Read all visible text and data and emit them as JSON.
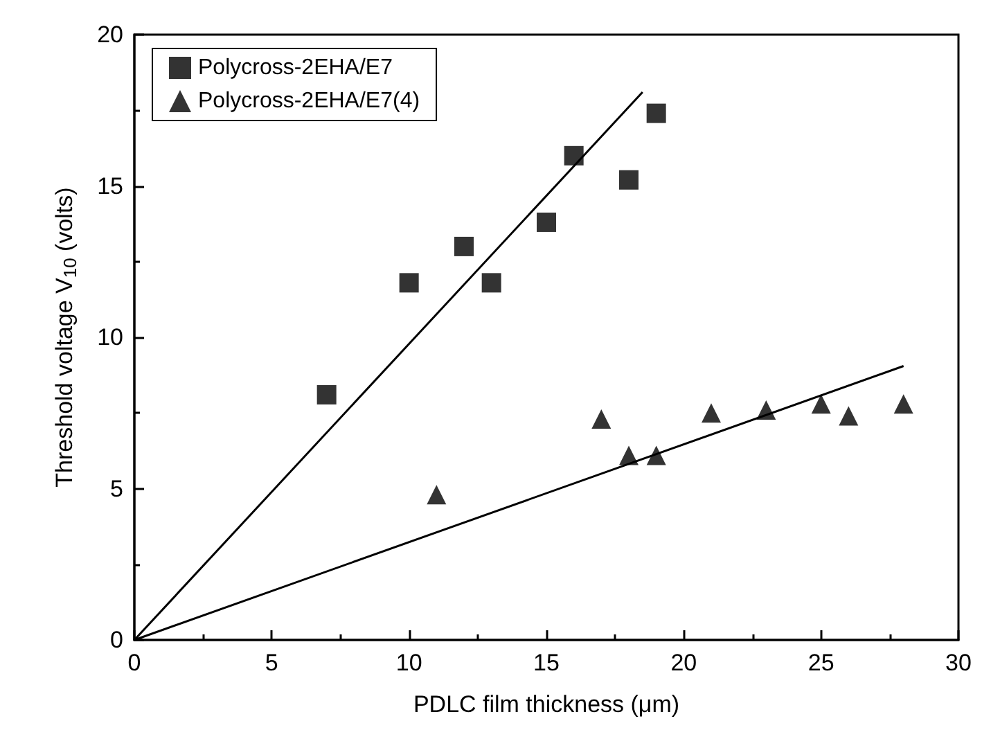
{
  "chart_data": {
    "type": "scatter",
    "xlabel": "PDLC film thickness (μm)",
    "ylabel": "Threshold voltage V$_{10}$ (volts)",
    "xlim": [
      0,
      30
    ],
    "xticks": [
      0,
      5,
      10,
      15,
      20,
      25,
      30
    ],
    "ylim": [
      0,
      20
    ],
    "yticks": [
      0,
      5,
      10,
      15,
      20
    ],
    "grid": false,
    "legend": "top left",
    "series": [
      {
        "name": "Polycross-2EHA/E7",
        "color": "#000000",
        "marker": "square",
        "x": [
          7,
          10,
          12,
          13,
          15,
          16,
          18,
          19
        ],
        "values": [
          8.1,
          11.8,
          13.0,
          11.8,
          13.8,
          16.0,
          15.2,
          17.4
        ]
      },
      {
        "name": "Polycross-2EHA/E7(4)",
        "color": "#000000",
        "marker": "triangle",
        "x": [
          11,
          17,
          18,
          19,
          21,
          23,
          25,
          26,
          28
        ],
        "values": [
          4.8,
          7.3,
          6.1,
          6.1,
          7.5,
          7.6,
          7.8,
          7.4,
          7.8
        ]
      },
      {
        "type": "line",
        "color": "#000000",
        "marker": "none",
        "x": [
          0,
          18.5
        ],
        "values": [
          0,
          18.1
        ]
      },
      {
        "type": "line",
        "color": "#000000",
        "marker": "none",
        "x": [
          0,
          28
        ],
        "values": [
          0,
          9.05
        ]
      }
    ]
  }
}
